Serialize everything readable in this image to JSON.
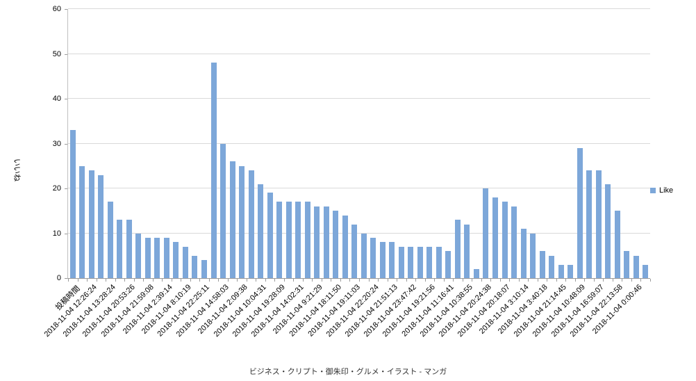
{
  "chart_data": {
    "type": "bar",
    "title": "",
    "grid": true,
    "y_axis": {
      "title": "いいね",
      "min": 0,
      "max": 60,
      "step": 10,
      "tick_labels": [
        "0",
        "10",
        "20",
        "30",
        "40",
        "50",
        "60"
      ]
    },
    "x_axis": {
      "label_every_n_bars": 2,
      "label_rotation_deg": -45
    },
    "legend": {
      "position": "right",
      "entries": [
        {
          "label": "Like",
          "color": "#7DA7D9"
        }
      ]
    },
    "categories": [
      "投稿時間",
      "",
      "2018-11-04 12:26:24",
      "",
      "2018-11-04 13:28:24",
      "",
      "2018-11-04 20:53:26",
      "",
      "2018-11-04 21:59:08",
      "",
      "2018-11-04 2:39:14",
      "",
      "2018-11-04 8:10:19",
      "",
      "2018-11-04 22:25:11",
      "",
      "2018-11-04 14:58:03",
      "",
      "2018-11-04 2:09:38",
      "",
      "2018-11-04 10:04:31",
      "",
      "2018-11-04 19:28:09",
      "",
      "2018-11-04 14:02:31",
      "",
      "2018-11-04 9:21:29",
      "",
      "2018-11-04 18:11:50",
      "",
      "2018-11-04 19:11:03",
      "",
      "2018-11-04 22:20:24",
      "",
      "2018-11-04 21:51:13",
      "",
      "2018-11-04 23:47:42",
      "",
      "2018-11-04 19:21:56",
      "",
      "2018-11-04 11:16:41",
      "",
      "2018-11-04 10:38:55",
      "",
      "2018-11-04 20:24:38",
      "",
      "2018-11-04 20:18:07",
      "",
      "2018-11-04 3:10:14",
      "",
      "2018-11-04 3:40:18",
      "",
      "2018-11-04 21:14:45",
      "",
      "2018-11-04 10:48:09",
      "",
      "2018-11-04 16:59:07",
      "",
      "2018-11-04 22:13:58",
      "",
      "2018-11-04 0:00:46",
      ""
    ],
    "series": [
      {
        "name": "Like",
        "color": "#7DA7D9",
        "values": [
          33,
          25,
          24,
          23,
          17,
          13,
          13,
          10,
          9,
          9,
          9,
          8,
          7,
          5,
          4,
          48,
          30,
          26,
          25,
          24,
          21,
          19,
          17,
          17,
          17,
          17,
          16,
          16,
          15,
          14,
          12,
          10,
          9,
          8,
          8,
          7,
          7,
          7,
          7,
          7,
          6,
          13,
          12,
          2,
          20,
          18,
          17,
          16,
          11,
          10,
          6,
          5,
          3,
          3,
          29,
          24,
          24,
          21,
          15,
          6,
          5,
          3
        ]
      }
    ],
    "footer_caption": "ビジネス・クリプト・御朱印・グルメ・イラスト - マンガ"
  },
  "colors": {
    "bar": "#7DA7D9",
    "gridline": "#d9d9d9",
    "axis": "#9b9b9b"
  }
}
